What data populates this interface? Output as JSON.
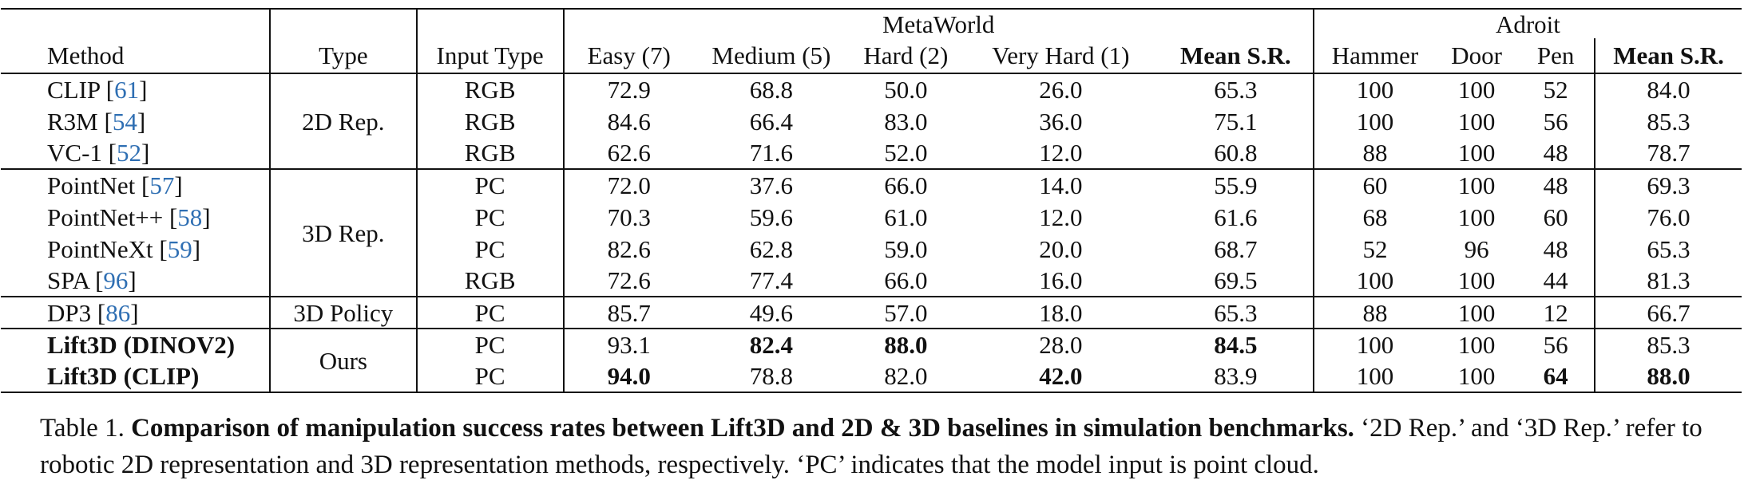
{
  "table": {
    "group_headers": {
      "metaworld": "MetaWorld",
      "adroit": "Adroit"
    },
    "columns": {
      "method": "Method",
      "type": "Type",
      "input_type": "Input Type",
      "easy": "Easy (7)",
      "medium": "Medium (5)",
      "hard": "Hard (2)",
      "very_hard": "Very Hard (1)",
      "mw_mean": "Mean S.R.",
      "hammer": "Hammer",
      "door": "Door",
      "pen": "Pen",
      "ad_mean": "Mean S.R."
    },
    "types": {
      "rep2d": "2D Rep.",
      "rep3d": "3D Rep.",
      "policy3d": "3D Policy",
      "ours": "Ours"
    },
    "rows": [
      {
        "name": "CLIP",
        "cite": "61",
        "input": "RGB",
        "easy": "72.9",
        "medium": "68.8",
        "hard": "50.0",
        "very_hard": "26.0",
        "mw_mean": "65.3",
        "hammer": "100",
        "door": "100",
        "pen": "52",
        "ad_mean": "84.0"
      },
      {
        "name": "R3M",
        "cite": "54",
        "input": "RGB",
        "easy": "84.6",
        "medium": "66.4",
        "hard": "83.0",
        "very_hard": "36.0",
        "mw_mean": "75.1",
        "hammer": "100",
        "door": "100",
        "pen": "56",
        "ad_mean": "85.3"
      },
      {
        "name": "VC-1",
        "cite": "52",
        "input": "RGB",
        "easy": "62.6",
        "medium": "71.6",
        "hard": "52.0",
        "very_hard": "12.0",
        "mw_mean": "60.8",
        "hammer": "88",
        "door": "100",
        "pen": "48",
        "ad_mean": "78.7"
      },
      {
        "name": "PointNet",
        "cite": "57",
        "input": "PC",
        "easy": "72.0",
        "medium": "37.6",
        "hard": "66.0",
        "very_hard": "14.0",
        "mw_mean": "55.9",
        "hammer": "60",
        "door": "100",
        "pen": "48",
        "ad_mean": "69.3"
      },
      {
        "name": "PointNet++",
        "cite": "58",
        "input": "PC",
        "easy": "70.3",
        "medium": "59.6",
        "hard": "61.0",
        "very_hard": "12.0",
        "mw_mean": "61.6",
        "hammer": "68",
        "door": "100",
        "pen": "60",
        "ad_mean": "76.0"
      },
      {
        "name": "PointNeXt",
        "cite": "59",
        "input": "PC",
        "easy": "82.6",
        "medium": "62.8",
        "hard": "59.0",
        "very_hard": "20.0",
        "mw_mean": "68.7",
        "hammer": "52",
        "door": "96",
        "pen": "48",
        "ad_mean": "65.3"
      },
      {
        "name": "SPA",
        "cite": "96",
        "input": "RGB",
        "easy": "72.6",
        "medium": "77.4",
        "hard": "66.0",
        "very_hard": "16.0",
        "mw_mean": "69.5",
        "hammer": "100",
        "door": "100",
        "pen": "44",
        "ad_mean": "81.3"
      },
      {
        "name": "DP3",
        "cite": "86",
        "input": "PC",
        "easy": "85.7",
        "medium": "49.6",
        "hard": "57.0",
        "very_hard": "18.0",
        "mw_mean": "65.3",
        "hammer": "88",
        "door": "100",
        "pen": "12",
        "ad_mean": "66.7"
      },
      {
        "name": "Lift3D (DINOV2)",
        "input": "PC",
        "easy": "93.1",
        "medium": "82.4",
        "hard": "88.0",
        "very_hard": "28.0",
        "mw_mean": "84.5",
        "hammer": "100",
        "door": "100",
        "pen": "56",
        "ad_mean": "85.3"
      },
      {
        "name": "Lift3D (CLIP)",
        "input": "PC",
        "easy": "94.0",
        "medium": "78.8",
        "hard": "82.0",
        "very_hard": "42.0",
        "mw_mean": "83.9",
        "hammer": "100",
        "door": "100",
        "pen": "64",
        "ad_mean": "88.0"
      }
    ]
  },
  "caption": {
    "label": "Table 1.",
    "title": "Comparison of manipulation success rates between Lift3D and 2D & 3D baselines in simulation benchmarks.",
    "body": "‘2D Rep.’ and ‘3D Rep.’ refer to robotic 2D representation and 3D representation methods, respectively. ‘PC’ indicates that the model input is point cloud."
  }
}
